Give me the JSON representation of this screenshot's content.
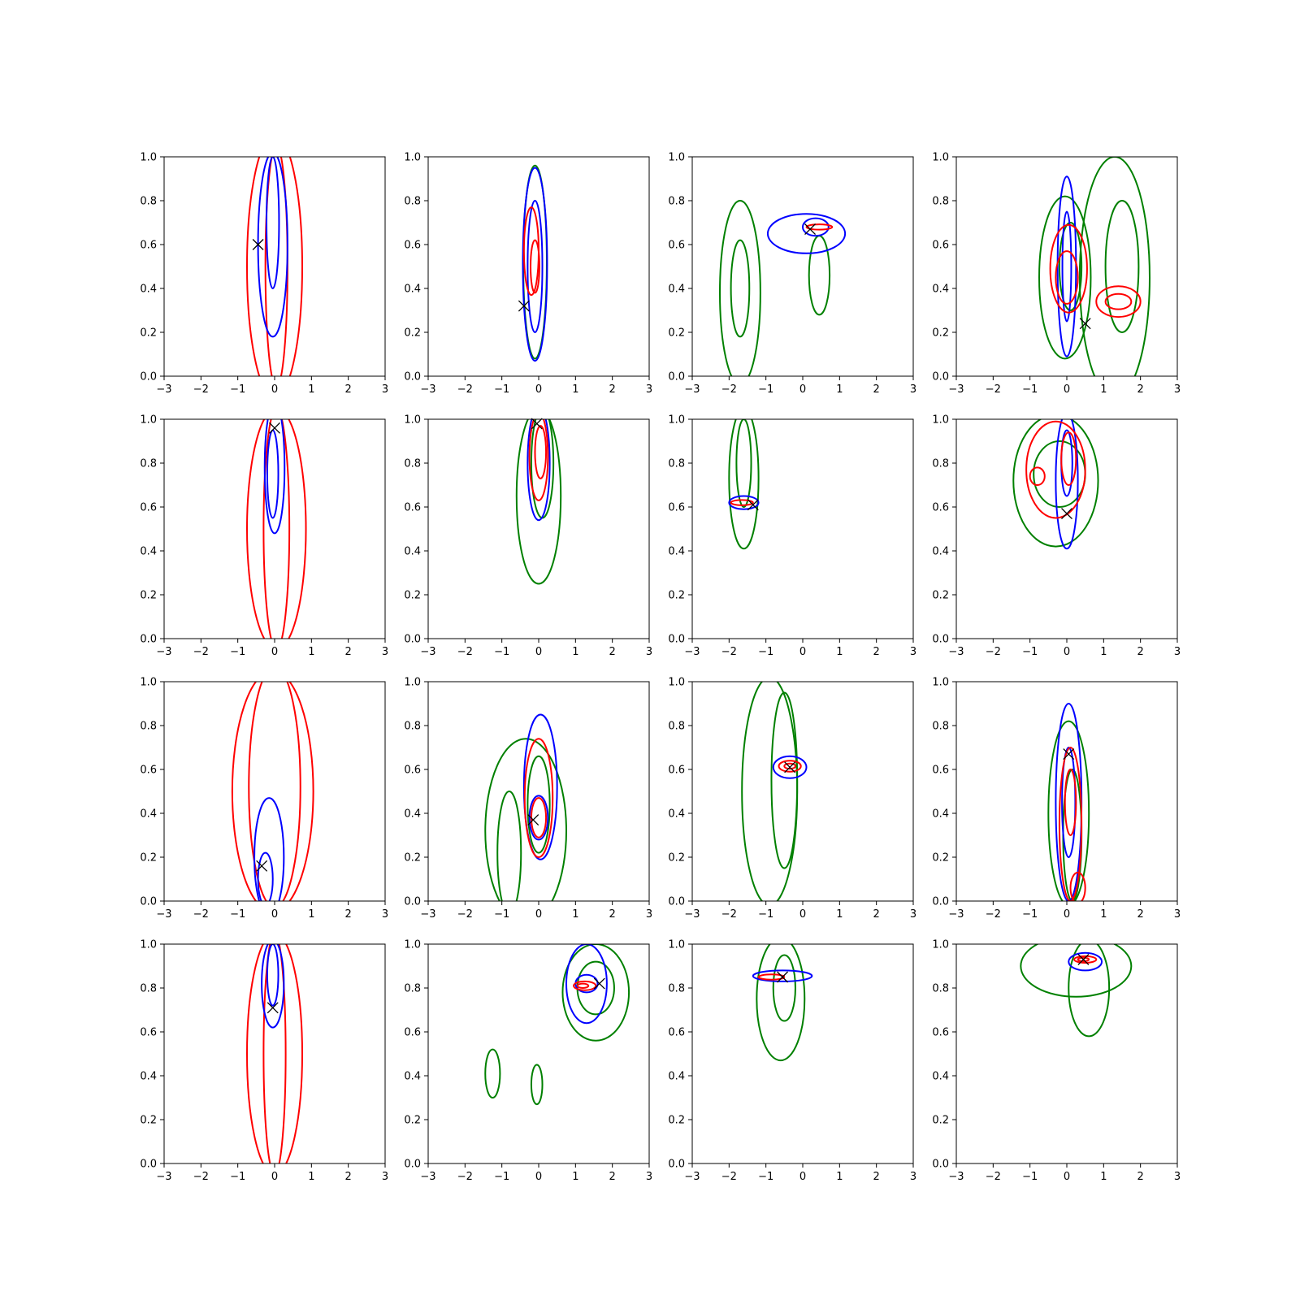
{
  "chart_data": {
    "type": "contour",
    "layout": {
      "rows": 4,
      "cols": 4
    },
    "x_axis": {
      "range": [
        -3,
        3
      ],
      "ticks": [
        -3,
        -2,
        -1,
        0,
        1,
        2,
        3
      ],
      "tick_labels": [
        "−3",
        "−2",
        "−1",
        "0",
        "1",
        "2",
        "3"
      ]
    },
    "y_axis": {
      "range": [
        0,
        1
      ],
      "ticks": [
        0,
        0.2,
        0.4,
        0.6,
        0.8,
        1.0
      ],
      "tick_labels": [
        "0.0",
        "0.2",
        "0.4",
        "0.6",
        "0.8",
        "1.0"
      ]
    },
    "series_colors": {
      "blue": "#0000ff",
      "red": "#ff0000",
      "green": "#008000",
      "marker": "#000000"
    },
    "panels": [
      {
        "marker": [
          -0.45,
          0.6
        ],
        "contours": [
          {
            "color": "red",
            "cx": 0.0,
            "cy": 0.5,
            "rx": 0.75,
            "ry": 0.6
          },
          {
            "color": "red",
            "cx": 0.05,
            "cy": 0.5,
            "rx": 0.3,
            "ry": 0.55
          },
          {
            "color": "blue",
            "cx": -0.05,
            "cy": 0.6,
            "rx": 0.4,
            "ry": 0.42
          },
          {
            "color": "blue",
            "cx": -0.05,
            "cy": 0.7,
            "rx": 0.17,
            "ry": 0.3
          }
        ]
      },
      {
        "marker": [
          -0.4,
          0.32
        ],
        "contours": [
          {
            "color": "green",
            "cx": -0.1,
            "cy": 0.52,
            "rx": 0.32,
            "ry": 0.44
          },
          {
            "color": "blue",
            "cx": -0.1,
            "cy": 0.51,
            "rx": 0.33,
            "ry": 0.44
          },
          {
            "color": "blue",
            "cx": -0.1,
            "cy": 0.5,
            "rx": 0.2,
            "ry": 0.3
          },
          {
            "color": "red",
            "cx": -0.2,
            "cy": 0.57,
            "rx": 0.2,
            "ry": 0.2
          },
          {
            "color": "red",
            "cx": -0.1,
            "cy": 0.5,
            "rx": 0.12,
            "ry": 0.12
          }
        ]
      },
      {
        "marker": [
          0.2,
          0.67
        ],
        "contours": [
          {
            "color": "green",
            "cx": -1.7,
            "cy": 0.38,
            "rx": 0.55,
            "ry": 0.42
          },
          {
            "color": "green",
            "cx": -1.7,
            "cy": 0.4,
            "rx": 0.25,
            "ry": 0.22
          },
          {
            "color": "green",
            "cx": 0.45,
            "cy": 0.46,
            "rx": 0.28,
            "ry": 0.18
          },
          {
            "color": "blue",
            "cx": 0.1,
            "cy": 0.65,
            "rx": 1.05,
            "ry": 0.09
          },
          {
            "color": "blue",
            "cx": 0.35,
            "cy": 0.68,
            "rx": 0.35,
            "ry": 0.04
          },
          {
            "color": "red",
            "cx": 0.45,
            "cy": 0.68,
            "rx": 0.35,
            "ry": 0.012
          }
        ]
      },
      {
        "marker": [
          0.5,
          0.24
        ],
        "contours": [
          {
            "color": "green",
            "cx": -0.05,
            "cy": 0.45,
            "rx": 0.7,
            "ry": 0.37
          },
          {
            "color": "green",
            "cx": 0.1,
            "cy": 0.5,
            "rx": 0.3,
            "ry": 0.2
          },
          {
            "color": "green",
            "cx": 1.3,
            "cy": 0.45,
            "rx": 0.95,
            "ry": 0.55
          },
          {
            "color": "green",
            "cx": 1.5,
            "cy": 0.5,
            "rx": 0.45,
            "ry": 0.3
          },
          {
            "color": "blue",
            "cx": 0.0,
            "cy": 0.5,
            "rx": 0.25,
            "ry": 0.41
          },
          {
            "color": "blue",
            "cx": 0.0,
            "cy": 0.5,
            "rx": 0.12,
            "ry": 0.25
          },
          {
            "color": "red",
            "cx": 0.05,
            "cy": 0.49,
            "rx": 0.5,
            "ry": 0.2
          },
          {
            "color": "red",
            "cx": 0.0,
            "cy": 0.45,
            "rx": 0.3,
            "ry": 0.12
          },
          {
            "color": "red",
            "cx": 1.4,
            "cy": 0.34,
            "rx": 0.6,
            "ry": 0.07
          },
          {
            "color": "red",
            "cx": 1.4,
            "cy": 0.34,
            "rx": 0.35,
            "ry": 0.035
          }
        ]
      },
      {
        "marker": [
          0.0,
          0.96
        ],
        "contours": [
          {
            "color": "red",
            "cx": 0.05,
            "cy": 0.5,
            "rx": 0.8,
            "ry": 0.55
          },
          {
            "color": "red",
            "cx": 0.05,
            "cy": 0.5,
            "rx": 0.35,
            "ry": 0.55
          },
          {
            "color": "blue",
            "cx": 0.0,
            "cy": 0.78,
            "rx": 0.27,
            "ry": 0.3
          },
          {
            "color": "blue",
            "cx": -0.05,
            "cy": 0.75,
            "rx": 0.15,
            "ry": 0.2
          }
        ]
      },
      {
        "marker": [
          -0.05,
          0.98
        ],
        "contours": [
          {
            "color": "green",
            "cx": 0.0,
            "cy": 0.65,
            "rx": 0.6,
            "ry": 0.4
          },
          {
            "color": "green",
            "cx": 0.1,
            "cy": 0.8,
            "rx": 0.3,
            "ry": 0.25
          },
          {
            "color": "blue",
            "cx": 0.0,
            "cy": 0.8,
            "rx": 0.3,
            "ry": 0.26
          },
          {
            "color": "red",
            "cx": 0.0,
            "cy": 0.83,
            "rx": 0.25,
            "ry": 0.2
          },
          {
            "color": "red",
            "cx": 0.05,
            "cy": 0.85,
            "rx": 0.15,
            "ry": 0.12
          }
        ]
      },
      {
        "marker": [
          -1.35,
          0.61
        ],
        "contours": [
          {
            "color": "green",
            "cx": -1.6,
            "cy": 0.73,
            "rx": 0.4,
            "ry": 0.32
          },
          {
            "color": "green",
            "cx": -1.6,
            "cy": 0.8,
            "rx": 0.2,
            "ry": 0.2
          },
          {
            "color": "blue",
            "cx": -1.6,
            "cy": 0.62,
            "rx": 0.4,
            "ry": 0.03
          },
          {
            "color": "red",
            "cx": -1.65,
            "cy": 0.62,
            "rx": 0.3,
            "ry": 0.012
          }
        ]
      },
      {
        "marker": [
          0.0,
          0.57
        ],
        "contours": [
          {
            "color": "green",
            "cx": -0.3,
            "cy": 0.72,
            "rx": 1.15,
            "ry": 0.3
          },
          {
            "color": "green",
            "cx": -0.2,
            "cy": 0.75,
            "rx": 0.7,
            "ry": 0.15
          },
          {
            "color": "blue",
            "cx": 0.0,
            "cy": 0.72,
            "rx": 0.3,
            "ry": 0.31
          },
          {
            "color": "blue",
            "cx": 0.0,
            "cy": 0.8,
            "rx": 0.15,
            "ry": 0.15
          },
          {
            "color": "red",
            "cx": -0.3,
            "cy": 0.77,
            "rx": 0.8,
            "ry": 0.22
          },
          {
            "color": "red",
            "cx": -0.8,
            "cy": 0.74,
            "rx": 0.2,
            "ry": 0.04
          },
          {
            "color": "red",
            "cx": 0.05,
            "cy": 0.82,
            "rx": 0.2,
            "ry": 0.12
          }
        ]
      },
      {
        "marker": [
          -0.35,
          0.16
        ],
        "contours": [
          {
            "color": "red",
            "cx": -0.05,
            "cy": 0.5,
            "rx": 1.1,
            "ry": 0.55
          },
          {
            "color": "red",
            "cx": 0.0,
            "cy": 0.52,
            "rx": 0.7,
            "ry": 0.55
          },
          {
            "color": "blue",
            "cx": -0.15,
            "cy": 0.2,
            "rx": 0.4,
            "ry": 0.27
          },
          {
            "color": "blue",
            "cx": -0.25,
            "cy": 0.1,
            "rx": 0.2,
            "ry": 0.12
          }
        ]
      },
      {
        "marker": [
          -0.15,
          0.37
        ],
        "contours": [
          {
            "color": "green",
            "cx": -0.35,
            "cy": 0.32,
            "rx": 1.1,
            "ry": 0.42
          },
          {
            "color": "green",
            "cx": -0.8,
            "cy": 0.22,
            "rx": 0.32,
            "ry": 0.28
          },
          {
            "color": "green",
            "cx": 0.0,
            "cy": 0.44,
            "rx": 0.3,
            "ry": 0.22
          },
          {
            "color": "blue",
            "cx": 0.05,
            "cy": 0.52,
            "rx": 0.45,
            "ry": 0.33
          },
          {
            "color": "blue",
            "cx": 0.0,
            "cy": 0.38,
            "rx": 0.25,
            "ry": 0.1
          },
          {
            "color": "red",
            "cx": 0.0,
            "cy": 0.47,
            "rx": 0.38,
            "ry": 0.27
          },
          {
            "color": "red",
            "cx": 0.0,
            "cy": 0.38,
            "rx": 0.2,
            "ry": 0.09
          }
        ]
      },
      {
        "marker": [
          -0.35,
          0.61
        ],
        "contours": [
          {
            "color": "green",
            "cx": -0.9,
            "cy": 0.5,
            "rx": 0.75,
            "ry": 0.52
          },
          {
            "color": "green",
            "cx": -0.5,
            "cy": 0.55,
            "rx": 0.35,
            "ry": 0.4
          },
          {
            "color": "blue",
            "cx": -0.35,
            "cy": 0.61,
            "rx": 0.45,
            "ry": 0.05
          },
          {
            "color": "red",
            "cx": -0.35,
            "cy": 0.615,
            "rx": 0.3,
            "ry": 0.025
          },
          {
            "color": "red",
            "cx": -0.35,
            "cy": 0.615,
            "rx": 0.15,
            "ry": 0.012
          }
        ]
      },
      {
        "marker": [
          0.05,
          0.67
        ],
        "contours": [
          {
            "color": "green",
            "cx": 0.05,
            "cy": 0.4,
            "rx": 0.55,
            "ry": 0.42
          },
          {
            "color": "green",
            "cx": 0.15,
            "cy": 0.3,
            "rx": 0.25,
            "ry": 0.3
          },
          {
            "color": "blue",
            "cx": 0.05,
            "cy": 0.45,
            "rx": 0.35,
            "ry": 0.45
          },
          {
            "color": "blue",
            "cx": 0.05,
            "cy": 0.45,
            "rx": 0.18,
            "ry": 0.25
          },
          {
            "color": "red",
            "cx": 0.1,
            "cy": 0.35,
            "rx": 0.3,
            "ry": 0.35
          },
          {
            "color": "red",
            "cx": 0.1,
            "cy": 0.45,
            "rx": 0.15,
            "ry": 0.15
          },
          {
            "color": "red",
            "cx": 0.3,
            "cy": 0.06,
            "rx": 0.2,
            "ry": 0.07
          }
        ]
      },
      {
        "marker": [
          -0.05,
          0.71
        ],
        "contours": [
          {
            "color": "red",
            "cx": 0.0,
            "cy": 0.5,
            "rx": 0.75,
            "ry": 0.55
          },
          {
            "color": "red",
            "cx": 0.0,
            "cy": 0.5,
            "rx": 0.3,
            "ry": 0.55
          },
          {
            "color": "blue",
            "cx": -0.05,
            "cy": 0.82,
            "rx": 0.3,
            "ry": 0.2
          },
          {
            "color": "blue",
            "cx": -0.05,
            "cy": 0.86,
            "rx": 0.15,
            "ry": 0.14
          }
        ]
      },
      {
        "marker": [
          1.65,
          0.82
        ],
        "contours": [
          {
            "color": "green",
            "cx": 1.55,
            "cy": 0.78,
            "rx": 0.9,
            "ry": 0.22
          },
          {
            "color": "green",
            "cx": 1.55,
            "cy": 0.8,
            "rx": 0.5,
            "ry": 0.12
          },
          {
            "color": "green",
            "cx": -1.25,
            "cy": 0.41,
            "rx": 0.2,
            "ry": 0.11
          },
          {
            "color": "green",
            "cx": -0.05,
            "cy": 0.36,
            "rx": 0.15,
            "ry": 0.09
          },
          {
            "color": "blue",
            "cx": 1.3,
            "cy": 0.82,
            "rx": 0.55,
            "ry": 0.18
          },
          {
            "color": "blue",
            "cx": 1.3,
            "cy": 0.82,
            "rx": 0.3,
            "ry": 0.04
          },
          {
            "color": "red",
            "cx": 1.25,
            "cy": 0.81,
            "rx": 0.3,
            "ry": 0.02
          },
          {
            "color": "red",
            "cx": 1.2,
            "cy": 0.81,
            "rx": 0.15,
            "ry": 0.01
          }
        ]
      },
      {
        "marker": [
          -0.55,
          0.85
        ],
        "contours": [
          {
            "color": "green",
            "cx": -0.6,
            "cy": 0.75,
            "rx": 0.65,
            "ry": 0.28
          },
          {
            "color": "green",
            "cx": -0.5,
            "cy": 0.8,
            "rx": 0.3,
            "ry": 0.15
          },
          {
            "color": "blue",
            "cx": -0.55,
            "cy": 0.855,
            "rx": 0.8,
            "ry": 0.025
          },
          {
            "color": "red",
            "cx": -0.85,
            "cy": 0.85,
            "rx": 0.35,
            "ry": 0.012
          }
        ]
      },
      {
        "marker": [
          0.45,
          0.93
        ],
        "contours": [
          {
            "color": "green",
            "cx": 0.25,
            "cy": 0.9,
            "rx": 1.5,
            "ry": 0.14
          },
          {
            "color": "green",
            "cx": 0.6,
            "cy": 0.8,
            "rx": 0.55,
            "ry": 0.22
          },
          {
            "color": "blue",
            "cx": 0.5,
            "cy": 0.92,
            "rx": 0.45,
            "ry": 0.04
          },
          {
            "color": "red",
            "cx": 0.5,
            "cy": 0.93,
            "rx": 0.3,
            "ry": 0.015
          },
          {
            "color": "red",
            "cx": 0.45,
            "cy": 0.93,
            "rx": 0.15,
            "ry": 0.008
          }
        ]
      }
    ]
  }
}
